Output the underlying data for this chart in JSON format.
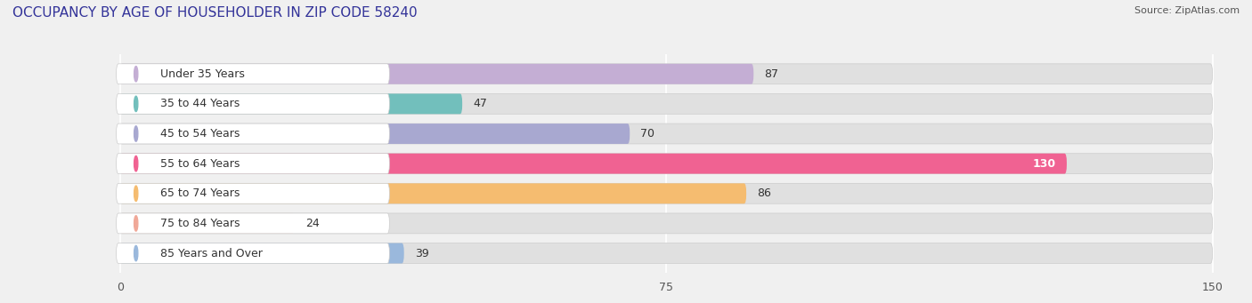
{
  "title": "OCCUPANCY BY AGE OF HOUSEHOLDER IN ZIP CODE 58240",
  "source": "Source: ZipAtlas.com",
  "categories": [
    "Under 35 Years",
    "35 to 44 Years",
    "45 to 54 Years",
    "55 to 64 Years",
    "65 to 74 Years",
    "75 to 84 Years",
    "85 Years and Over"
  ],
  "values": [
    87,
    47,
    70,
    130,
    86,
    24,
    39
  ],
  "bar_colors": [
    "#c4aed4",
    "#72bfbc",
    "#a8a8d0",
    "#f06292",
    "#f5bc70",
    "#f0a898",
    "#9ab8dc"
  ],
  "xlim_data": [
    0,
    150
  ],
  "xticks": [
    0,
    75,
    150
  ],
  "background_color": "#f0f0f0",
  "bar_bg_color": "#e0e0e0",
  "label_bg_color": "#ffffff",
  "title_fontsize": 11,
  "source_fontsize": 8,
  "label_fontsize": 9,
  "value_fontsize": 9,
  "value_white": [
    130
  ]
}
